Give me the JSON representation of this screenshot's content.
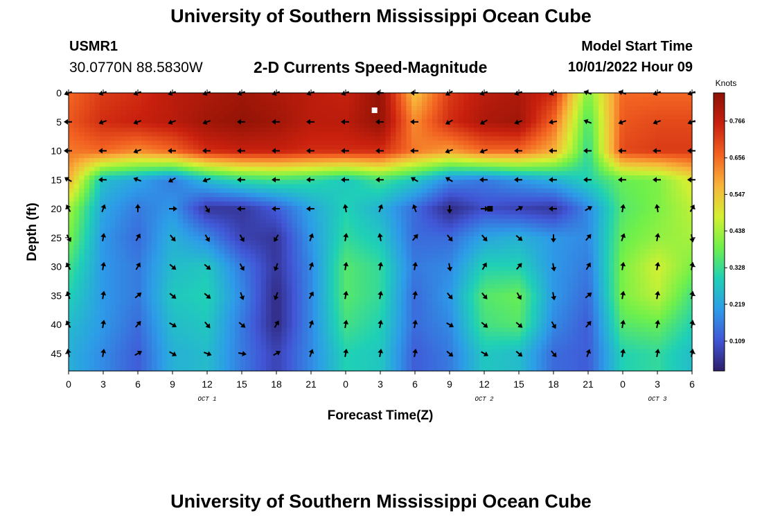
{
  "header": {
    "title": "University of Southern Mississippi Ocean Cube",
    "station": "USMR1",
    "coordinates": "30.0770N  88.5830W",
    "subtitle": "2-D Currents Speed-Magnitude",
    "model_start_label": "Model Start Time",
    "model_start_value": "10/01/2022 Hour 09"
  },
  "footer": {
    "title": "University of Southern Mississippi Ocean Cube"
  },
  "colors": {
    "ramp": [
      "#2d1e6b",
      "#4156d6",
      "#2d9ce8",
      "#1fd0b6",
      "#6ff04a",
      "#d4f032",
      "#f8b43a",
      "#f26221",
      "#c9200e",
      "#8c1205"
    ],
    "arrow": "#000000",
    "marker_surface": "#ffffff",
    "marker_sub": "#000000"
  },
  "chart_data": {
    "type": "heatmap",
    "title": "2-D Currents Speed-Magnitude",
    "xlabel": "Forecast Time(Z)",
    "ylabel": "Depth (ft)",
    "x": {
      "hours_since_start": [
        0,
        3,
        6,
        9,
        12,
        15,
        18,
        21,
        24,
        27,
        30,
        33,
        36,
        39,
        42,
        45,
        48,
        51,
        54
      ],
      "tick_labels": [
        "0",
        "3",
        "6",
        "9",
        "12",
        "15",
        "18",
        "21",
        "0",
        "3",
        "6",
        "9",
        "12",
        "15",
        "18",
        "21",
        "0",
        "3",
        "6"
      ],
      "day_labels": [
        {
          "label": "OCT 1",
          "hour": 12
        },
        {
          "label": "OCT 2",
          "hour": 36
        },
        {
          "label": "OCT 3",
          "hour": 51
        }
      ],
      "range_hours": [
        0,
        54
      ]
    },
    "y": {
      "depths_ft": [
        0,
        5,
        10,
        15,
        20,
        25,
        30,
        35,
        40,
        45
      ],
      "tick_labels": [
        "0",
        "5",
        "10",
        "15",
        "20",
        "25",
        "30",
        "35",
        "40",
        "45"
      ],
      "range_ft": [
        0,
        48
      ],
      "inverted": true
    },
    "colorbar": {
      "unit": "Knots",
      "tick_values": [
        0.109,
        0.219,
        0.328,
        0.438,
        0.547,
        0.656,
        0.766
      ],
      "tick_labels": [
        "0.109",
        "0.219",
        "0.328",
        "0.438",
        "0.547",
        "0.656",
        "0.766"
      ],
      "range": [
        0.02,
        0.85
      ]
    },
    "arrow_x_hours": [
      0,
      3,
      6,
      9,
      12,
      15,
      18,
      21,
      24,
      27,
      30,
      33,
      36,
      39,
      42,
      45,
      48,
      51,
      54
    ],
    "arrow_depths_ft": [
      0,
      5,
      10,
      15,
      20,
      25,
      30,
      35,
      40,
      45
    ],
    "speed_knots": [
      [
        0.66,
        0.72,
        0.74,
        0.78,
        0.8,
        0.82,
        0.8,
        0.78,
        0.76,
        0.84,
        0.55,
        0.72,
        0.78,
        0.8,
        0.74,
        0.4,
        0.66,
        0.66,
        0.66
      ],
      [
        0.68,
        0.74,
        0.76,
        0.78,
        0.82,
        0.84,
        0.82,
        0.78,
        0.78,
        0.84,
        0.62,
        0.74,
        0.8,
        0.82,
        0.66,
        0.35,
        0.68,
        0.7,
        0.7
      ],
      [
        0.64,
        0.66,
        0.62,
        0.66,
        0.74,
        0.76,
        0.76,
        0.74,
        0.74,
        0.74,
        0.64,
        0.6,
        0.66,
        0.66,
        0.58,
        0.32,
        0.7,
        0.72,
        0.72
      ],
      [
        0.58,
        0.26,
        0.22,
        0.16,
        0.26,
        0.32,
        0.34,
        0.32,
        0.28,
        0.34,
        0.28,
        0.18,
        0.16,
        0.2,
        0.24,
        0.3,
        0.38,
        0.4,
        0.5
      ],
      [
        0.44,
        0.22,
        0.16,
        0.2,
        0.06,
        0.06,
        0.12,
        0.22,
        0.3,
        0.24,
        0.14,
        0.04,
        0.1,
        0.08,
        0.06,
        0.18,
        0.36,
        0.4,
        0.46
      ],
      [
        0.4,
        0.2,
        0.14,
        0.24,
        0.18,
        0.08,
        0.06,
        0.2,
        0.32,
        0.28,
        0.14,
        0.14,
        0.22,
        0.24,
        0.2,
        0.18,
        0.38,
        0.42,
        0.44
      ],
      [
        0.34,
        0.2,
        0.16,
        0.26,
        0.28,
        0.16,
        0.06,
        0.18,
        0.36,
        0.32,
        0.16,
        0.18,
        0.3,
        0.3,
        0.2,
        0.16,
        0.4,
        0.48,
        0.4
      ],
      [
        0.3,
        0.2,
        0.16,
        0.28,
        0.3,
        0.18,
        0.04,
        0.18,
        0.36,
        0.32,
        0.14,
        0.2,
        0.36,
        0.38,
        0.2,
        0.14,
        0.4,
        0.46,
        0.34
      ],
      [
        0.26,
        0.2,
        0.14,
        0.26,
        0.28,
        0.16,
        0.04,
        0.18,
        0.34,
        0.3,
        0.14,
        0.18,
        0.34,
        0.36,
        0.18,
        0.12,
        0.36,
        0.38,
        0.3
      ],
      [
        0.24,
        0.18,
        0.12,
        0.24,
        0.26,
        0.16,
        0.08,
        0.18,
        0.3,
        0.28,
        0.12,
        0.16,
        0.28,
        0.26,
        0.14,
        0.12,
        0.3,
        0.32,
        0.26
      ]
    ],
    "direction_deg": [
      [
        250,
        250,
        250,
        250,
        250,
        250,
        250,
        250,
        250,
        270,
        270,
        240,
        250,
        250,
        250,
        290,
        290,
        250,
        250
      ],
      [
        270,
        250,
        250,
        250,
        250,
        270,
        270,
        270,
        270,
        270,
        270,
        240,
        240,
        250,
        260,
        290,
        250,
        250,
        250
      ],
      [
        270,
        270,
        250,
        270,
        270,
        270,
        270,
        270,
        270,
        270,
        270,
        250,
        250,
        270,
        270,
        270,
        270,
        270,
        270
      ],
      [
        300,
        270,
        290,
        240,
        250,
        270,
        270,
        270,
        270,
        270,
        300,
        300,
        270,
        270,
        270,
        270,
        270,
        270,
        270
      ],
      [
        330,
        20,
        360,
        90,
        150,
        270,
        270,
        270,
        350,
        20,
        340,
        180,
        90,
        60,
        270,
        60,
        10,
        350,
        30
      ],
      [
        150,
        10,
        30,
        140,
        150,
        150,
        210,
        20,
        10,
        350,
        40,
        140,
        140,
        130,
        180,
        40,
        20,
        10,
        170
      ],
      [
        330,
        10,
        30,
        130,
        130,
        150,
        200,
        20,
        10,
        10,
        10,
        170,
        30,
        40,
        170,
        30,
        10,
        10,
        10
      ],
      [
        340,
        10,
        50,
        130,
        130,
        160,
        200,
        30,
        10,
        10,
        10,
        140,
        140,
        150,
        170,
        50,
        10,
        10,
        10
      ],
      [
        330,
        10,
        40,
        120,
        140,
        130,
        30,
        20,
        10,
        10,
        10,
        120,
        130,
        130,
        150,
        40,
        10,
        10,
        10
      ],
      [
        350,
        10,
        60,
        120,
        110,
        100,
        60,
        20,
        10,
        10,
        10,
        130,
        120,
        130,
        140,
        20,
        10,
        10,
        10
      ]
    ],
    "markers": [
      {
        "hour": 26.5,
        "depth_ft": 3,
        "color": "white"
      },
      {
        "hour": 36.5,
        "depth_ft": 20,
        "color": "black"
      }
    ]
  }
}
